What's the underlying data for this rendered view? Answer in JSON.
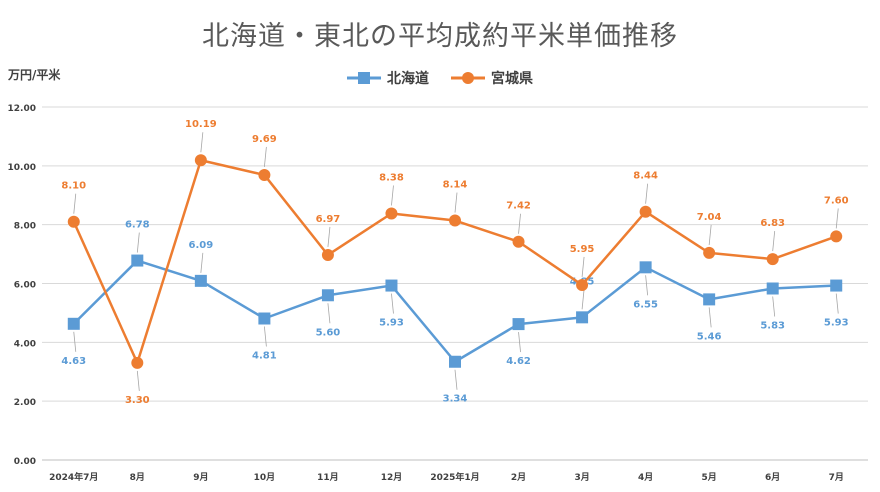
{
  "chart_data": {
    "type": "line",
    "title": "北海道・東北の平均成約平米単価推移",
    "ylabel": "万円/平米",
    "xlabel": "",
    "categories": [
      "2024年7月",
      "8月",
      "9月",
      "10月",
      "11月",
      "12月",
      "2025年1月",
      "2月",
      "3月",
      "4月",
      "5月",
      "6月",
      "7月"
    ],
    "ylim": [
      0,
      12
    ],
    "yticks": [
      "0.00",
      "2.00",
      "4.00",
      "6.00",
      "8.00",
      "10.00",
      "12.00"
    ],
    "grid": true,
    "legend_position": "top",
    "series": [
      {
        "name": "北海道",
        "color": "#5b9bd5",
        "marker": "square",
        "values": [
          4.63,
          6.78,
          6.09,
          4.81,
          5.6,
          5.93,
          3.34,
          4.62,
          4.85,
          6.55,
          5.46,
          5.83,
          5.93
        ],
        "labels": [
          "4.63",
          "6.78",
          "6.09",
          "4.81",
          "5.60",
          "5.93",
          "3.34",
          "4.62",
          "4.85",
          "6.55",
          "5.46",
          "5.83",
          "5.93"
        ]
      },
      {
        "name": "宮城県",
        "color": "#ed7d31",
        "marker": "circle",
        "values": [
          8.1,
          3.3,
          10.19,
          9.69,
          6.97,
          8.38,
          8.14,
          7.42,
          5.95,
          8.44,
          7.04,
          6.83,
          7.6
        ],
        "labels": [
          "8.10",
          "3.30",
          "10.19",
          "9.69",
          "6.97",
          "8.38",
          "8.14",
          "7.42",
          "5.95",
          "8.44",
          "7.04",
          "6.83",
          "7.60"
        ]
      }
    ]
  }
}
